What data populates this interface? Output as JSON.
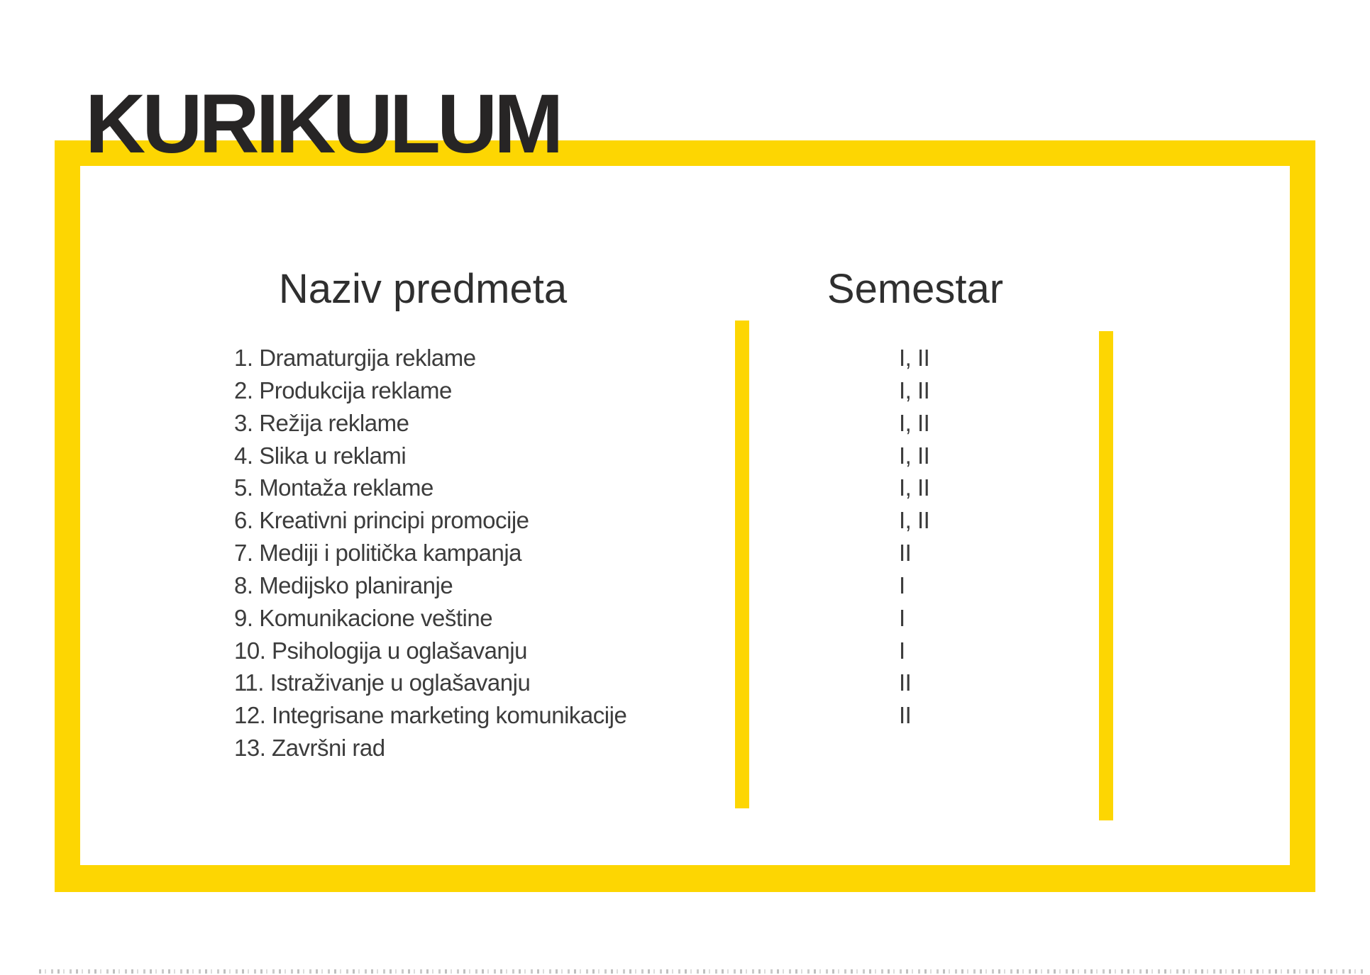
{
  "title": "KURIKULUM",
  "table": {
    "headers": {
      "subject": "Naziv predmeta",
      "semester": "Semestar"
    },
    "rows": [
      {
        "subject": "1. Dramaturgija reklame",
        "semester": "I, II"
      },
      {
        "subject": "2. Produkcija reklame",
        "semester": "I, II"
      },
      {
        "subject": "3. Režija reklame",
        "semester": "I, II"
      },
      {
        "subject": "4. Slika u reklami",
        "semester": "I, II"
      },
      {
        "subject": "5. Montaža reklame",
        "semester": "I, II"
      },
      {
        "subject": "6. Kreativni principi promocije",
        "semester": "I, II"
      },
      {
        "subject": "7. Mediji i politička kampanja",
        "semester": "II"
      },
      {
        "subject": "8. Medijsko planiranje",
        "semester": "I"
      },
      {
        "subject": "9. Komunikacione veštine",
        "semester": "I"
      },
      {
        "subject": "10. Psihologija u oglašavanju",
        "semester": "I"
      },
      {
        "subject": "11. Istraživanje u oglašavanju",
        "semester": "II"
      },
      {
        "subject": "12. Integrisane marketing komunikacije",
        "semester": "II"
      },
      {
        "subject": "13. Završni rad",
        "semester": ""
      }
    ]
  },
  "colors": {
    "accent": "#FDD602",
    "title_text": "#272525",
    "body_text": "#3C3C3C"
  }
}
